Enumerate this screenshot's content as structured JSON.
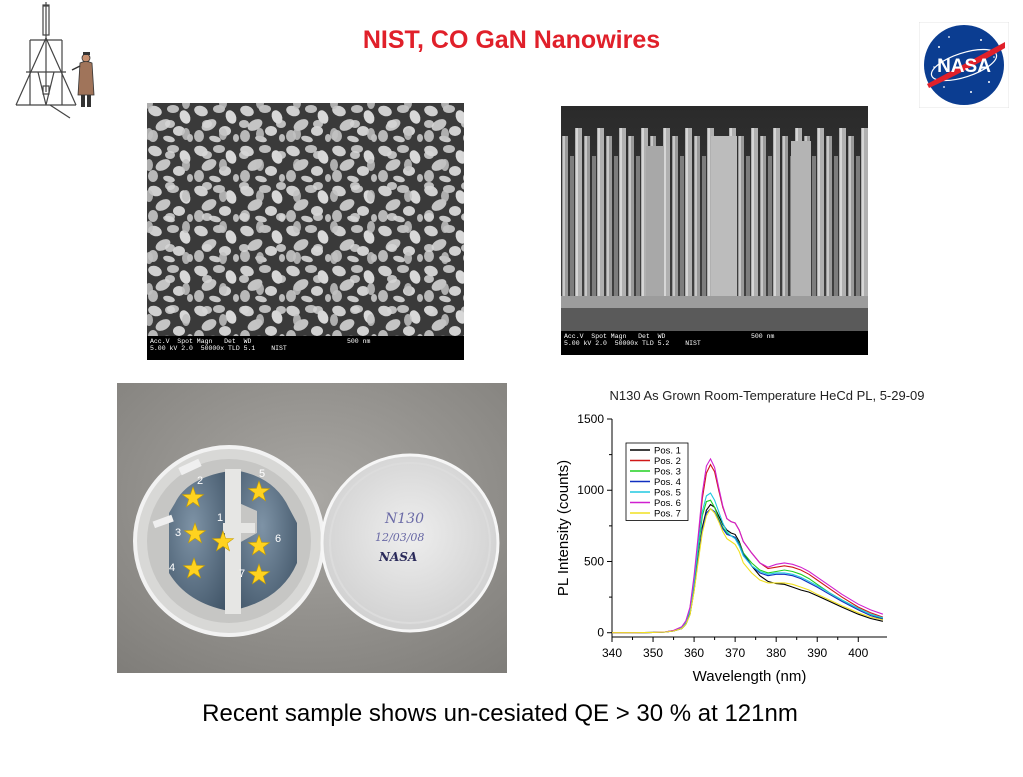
{
  "slide": {
    "title": "NIST, CO GaN Nanowires",
    "caption": "Recent sample shows un-cesiated QE > 30 % at 121nm"
  },
  "logos": {
    "left": "goddard-rocket-icon",
    "right": "nasa-meatball-logo"
  },
  "sem_top_left": {
    "info_line1": "Acc.V  Spot Magn   Det  WD",
    "info_line2": "5.00 kV 2.0  50000x TLD 5.1",
    "info_lab": "NIST",
    "scale_label": "500 nm"
  },
  "sem_top_right": {
    "info_line1": "Acc.V  Spot Magn   Det  WD",
    "info_line2": "5.00 kV 2.0  50000x TLD 5.2",
    "info_lab": "NIST",
    "scale_label": "500 nm"
  },
  "photo": {
    "positions": [
      "1",
      "2",
      "3",
      "4",
      "5",
      "6",
      "7"
    ],
    "dish_label_line1": "N130",
    "dish_label_line2": "12/03/08",
    "dish_label_line3": "NASA",
    "star_color": "#ffd21f"
  },
  "chart_data": {
    "type": "line",
    "title": "N130 As Grown Room-Temperature HeCd PL, 5-29-09",
    "xlabel": "Wavelength (nm)",
    "ylabel": "PL Intensity (counts)",
    "xlim": [
      340,
      407
    ],
    "ylim": [
      -30,
      1500
    ],
    "xticks": [
      340,
      350,
      360,
      370,
      380,
      390,
      400
    ],
    "yticks": [
      0,
      500,
      1000,
      1500
    ],
    "legend_position": "top-left",
    "x": [
      340,
      345,
      350,
      353,
      355,
      357,
      358,
      359,
      360,
      361,
      362,
      363,
      364,
      365,
      366,
      367,
      368,
      369,
      370,
      371,
      372,
      374,
      376,
      378,
      380,
      382,
      384,
      386,
      388,
      390,
      393,
      396,
      400,
      403,
      406
    ],
    "series": [
      {
        "name": "Pos. 1",
        "color": "#000000",
        "values": [
          0,
          0,
          2,
          5,
          12,
          30,
          60,
          130,
          300,
          520,
          740,
          860,
          900,
          880,
          820,
          760,
          720,
          700,
          690,
          640,
          560,
          470,
          400,
          360,
          345,
          340,
          320,
          300,
          285,
          260,
          220,
          180,
          130,
          100,
          80
        ]
      },
      {
        "name": "Pos. 2",
        "color": "#d01818",
        "values": [
          0,
          0,
          2,
          6,
          15,
          40,
          80,
          170,
          380,
          650,
          940,
          1120,
          1180,
          1130,
          1000,
          880,
          800,
          780,
          770,
          720,
          640,
          560,
          490,
          450,
          460,
          470,
          460,
          440,
          410,
          370,
          310,
          250,
          180,
          140,
          110
        ]
      },
      {
        "name": "Pos. 3",
        "color": "#20d020",
        "values": [
          0,
          0,
          2,
          6,
          14,
          36,
          72,
          150,
          340,
          580,
          820,
          920,
          930,
          880,
          800,
          740,
          700,
          680,
          670,
          630,
          560,
          490,
          440,
          420,
          430,
          440,
          430,
          410,
          380,
          340,
          280,
          230,
          170,
          130,
          100
        ]
      },
      {
        "name": "Pos. 4",
        "color": "#1030c0",
        "values": [
          0,
          0,
          2,
          5,
          12,
          30,
          62,
          130,
          300,
          520,
          720,
          840,
          870,
          850,
          790,
          730,
          690,
          680,
          670,
          620,
          550,
          470,
          420,
          400,
          410,
          410,
          400,
          380,
          350,
          320,
          270,
          220,
          160,
          120,
          95
        ]
      },
      {
        "name": "Pos. 5",
        "color": "#20c8e0",
        "values": [
          0,
          0,
          2,
          6,
          14,
          38,
          76,
          160,
          360,
          620,
          850,
          960,
          980,
          930,
          850,
          770,
          710,
          680,
          660,
          610,
          540,
          470,
          430,
          410,
          420,
          420,
          410,
          390,
          360,
          330,
          280,
          230,
          170,
          130,
          105
        ]
      },
      {
        "name": "Pos. 6",
        "color": "#d020d0",
        "values": [
          0,
          0,
          2,
          6,
          16,
          42,
          84,
          180,
          400,
          680,
          980,
          1170,
          1220,
          1160,
          1020,
          890,
          800,
          780,
          770,
          720,
          640,
          560,
          490,
          460,
          480,
          490,
          480,
          460,
          430,
          390,
          330,
          270,
          200,
          160,
          130
        ]
      },
      {
        "name": "Pos. 7",
        "color": "#f0e020",
        "values": [
          0,
          0,
          2,
          5,
          12,
          30,
          60,
          125,
          290,
          500,
          700,
          820,
          870,
          840,
          780,
          710,
          660,
          640,
          620,
          570,
          490,
          420,
          370,
          350,
          350,
          350,
          340,
          320,
          300,
          270,
          230,
          190,
          140,
          110,
          90
        ]
      }
    ]
  }
}
